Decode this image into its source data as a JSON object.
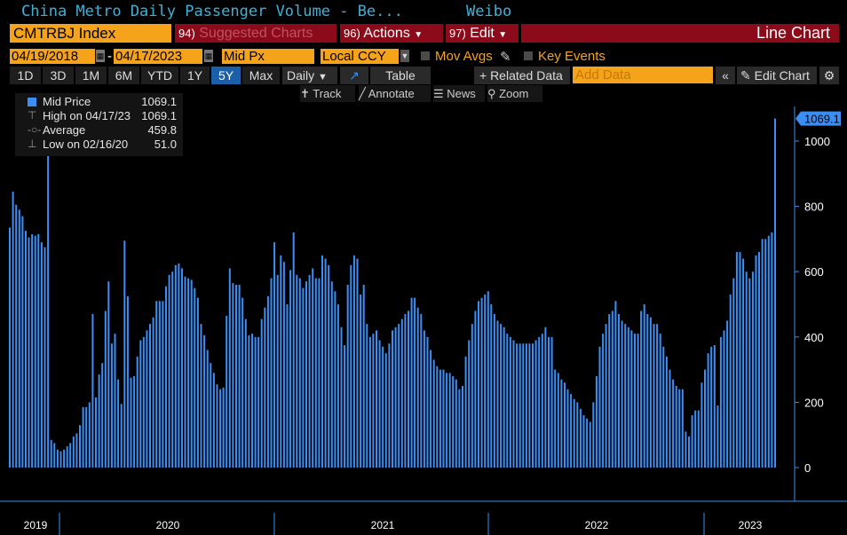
{
  "header": {
    "title": "China Metro Daily Passenger Volume - Be...",
    "source": "Weibo"
  },
  "toolbar": {
    "ticker": "CMTRBJ Index",
    "menus": [
      {
        "num": "94)",
        "label": "Suggested Charts"
      },
      {
        "num": "96)",
        "label": "Actions"
      },
      {
        "num": "97)",
        "label": "Edit"
      }
    ],
    "chart_type_label": "Line Chart"
  },
  "controls": {
    "start_date": "04/19/2018",
    "end_date": "04/17/2023",
    "field": "Mid Px",
    "currency": "Local CCY",
    "mov_avgs": "Mov Avgs",
    "key_events": "Key Events"
  },
  "periods": [
    "1D",
    "3D",
    "1M",
    "6M",
    "YTD",
    "1Y",
    "5Y",
    "Max"
  ],
  "active_period": "5Y",
  "frequency": "Daily",
  "view": {
    "table": "Table",
    "related": "+ Related Data",
    "add_data_placeholder": "Add Data",
    "edit_chart": "Edit Chart"
  },
  "tools": {
    "track": "Track",
    "annotate": "Annotate",
    "news": "News",
    "zoom": "Zoom"
  },
  "legend": {
    "series": "Mid Price",
    "series_value": "1069.1",
    "high_label": "High on 04/17/23",
    "high_value": "1069.1",
    "avg_label": "Average",
    "avg_value": "459.8",
    "low_label": "Low on 02/16/20",
    "low_value": "51.0"
  },
  "colors": {
    "accent": "#f5a31a",
    "series": "#3b8ef3",
    "menu_bg": "#8c0b1a",
    "title": "#3fb0d8"
  },
  "chart_data": {
    "type": "bar",
    "series": [
      {
        "name": "Mid Price",
        "values": [
          735,
          845,
          805,
          790,
          770,
          725,
          705,
          715,
          710,
          715,
          690,
          675,
          980,
          85,
          75,
          55,
          50,
          55,
          65,
          75,
          95,
          105,
          130,
          185,
          185,
          200,
          470,
          215,
          285,
          320,
          480,
          570,
          380,
          410,
          270,
          195,
          695,
          525,
          275,
          280,
          340,
          390,
          400,
          420,
          440,
          460,
          510,
          510,
          510,
          555,
          590,
          600,
          620,
          625,
          610,
          585,
          580,
          575,
          550,
          520,
          440,
          405,
          360,
          320,
          290,
          255,
          240,
          245,
          465,
          610,
          565,
          560,
          560,
          520,
          455,
          405,
          410,
          400,
          400,
          455,
          490,
          525,
          580,
          690,
          590,
          650,
          630,
          500,
          605,
          720,
          590,
          580,
          550,
          570,
          590,
          610,
          580,
          580,
          650,
          640,
          620,
          570,
          540,
          500,
          430,
          375,
          560,
          620,
          650,
          640,
          530,
          560,
          440,
          400,
          410,
          420,
          390,
          370,
          350,
          380,
          420,
          430,
          440,
          455,
          470,
          480,
          520,
          520,
          490,
          470,
          420,
          400,
          360,
          330,
          310,
          300,
          300,
          290,
          290,
          280,
          270,
          240,
          250,
          340,
          390,
          440,
          480,
          510,
          520,
          530,
          540,
          500,
          470,
          450,
          440,
          430,
          410,
          400,
          390,
          380,
          380,
          380,
          380,
          380,
          380,
          390,
          400,
          410,
          430,
          400,
          400,
          300,
          290,
          270,
          260,
          240,
          225,
          210,
          200,
          180,
          160,
          150,
          140,
          200,
          280,
          370,
          410,
          440,
          470,
          480,
          510,
          470,
          450,
          440,
          430,
          420,
          410,
          410,
          480,
          500,
          470,
          460,
          440,
          440,
          410,
          370,
          340,
          300,
          270,
          250,
          240,
          240,
          110,
          95,
          160,
          175,
          175,
          260,
          300,
          350,
          370,
          375,
          190,
          400,
          420,
          450,
          530,
          580,
          660,
          660,
          640,
          600,
          580,
          600,
          650,
          660,
          700,
          700,
          710,
          720,
          1069.1
        ]
      }
    ],
    "x_axis": {
      "start": "04/19/2018",
      "end": "04/17/2023",
      "year_labels": [
        "2019",
        "2020",
        "2021",
        "2022",
        "2023"
      ]
    },
    "y_axis": {
      "ticks": [
        0,
        200,
        400,
        600,
        800,
        1000
      ],
      "min": 0,
      "max": 1069.1
    },
    "last_value": 1069.1,
    "grid": false
  }
}
